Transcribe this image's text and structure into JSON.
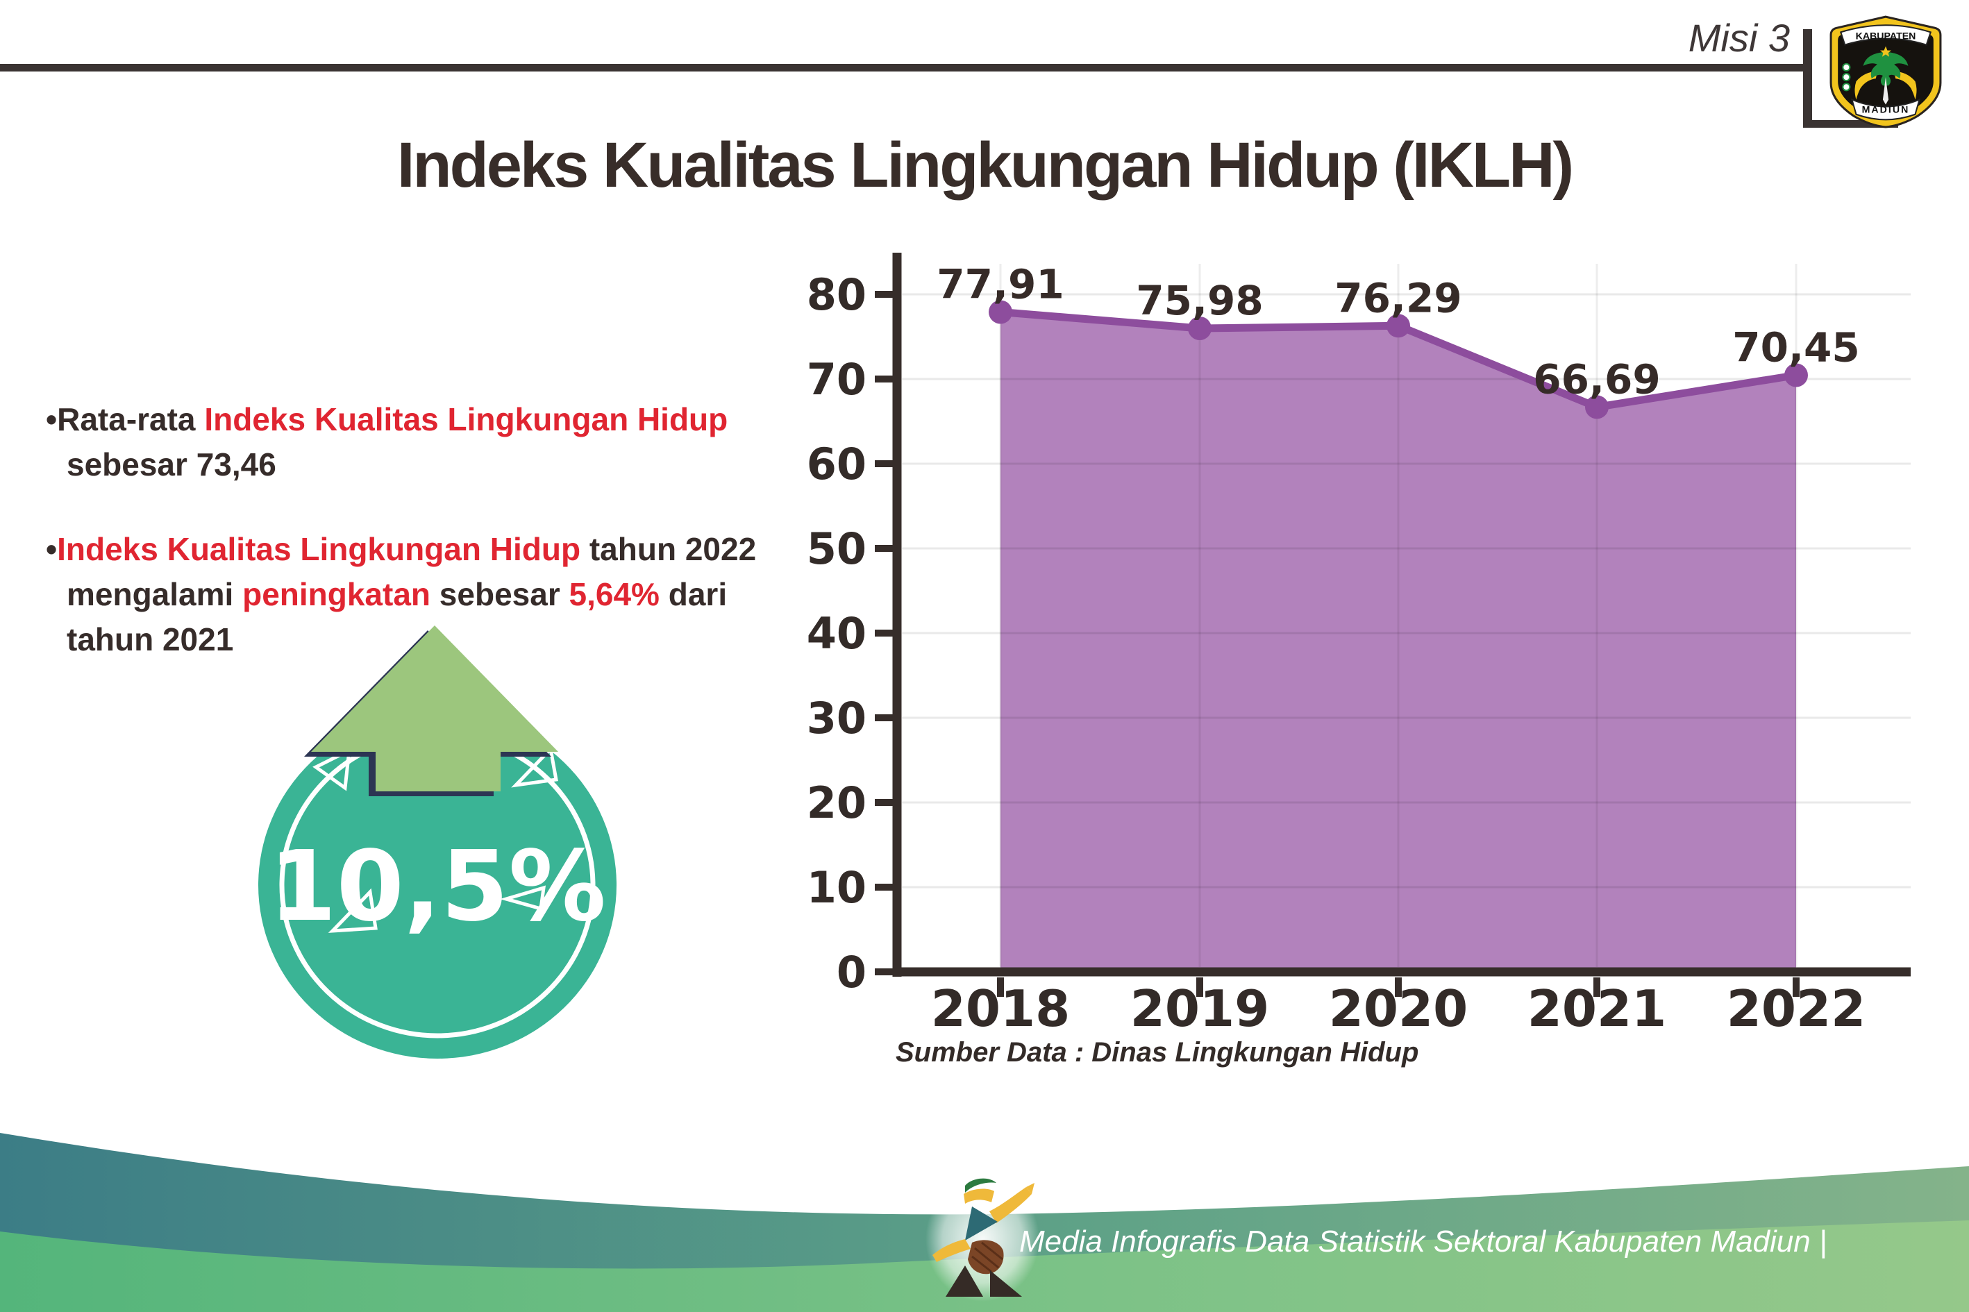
{
  "header": {
    "misi_label": "Misi 3",
    "logo": {
      "top_text": "KABUPATEN",
      "bottom_text": "MADIUN"
    }
  },
  "title": "Indeks Kualitas Lingkungan Hidup (IKLH)",
  "bullets": {
    "marker": "•",
    "items": [
      {
        "segments": [
          {
            "text": "Rata-rata ",
            "style": "dark"
          },
          {
            "text": "Indeks Kualitas Lingkungan Hidup",
            "style": "red"
          },
          {
            "text": " sebesar 73,46",
            "style": "dark"
          }
        ]
      },
      {
        "segments": [
          {
            "text": "Indeks Kualitas Lingkungan Hidup",
            "style": "red"
          },
          {
            "text": " tahun 2022 mengalami ",
            "style": "dark"
          },
          {
            "text": "peningkatan",
            "style": "red"
          },
          {
            "text": " sebesar ",
            "style": "dark"
          },
          {
            "text": "5,64%",
            "style": "red"
          },
          {
            "text": " dari tahun 2021",
            "style": "dark"
          }
        ]
      }
    ]
  },
  "badge": {
    "value": "10,5%"
  },
  "chart_data": {
    "type": "area",
    "categories": [
      "2018",
      "2019",
      "2020",
      "2021",
      "2022"
    ],
    "values": [
      77.91,
      75.98,
      76.29,
      66.69,
      70.45
    ],
    "value_labels": [
      "77,91",
      "75,98",
      "76,29",
      "66,69",
      "70,45"
    ],
    "title": "",
    "xlabel": "",
    "ylabel": "",
    "ylim": [
      0,
      86
    ],
    "yticks": [
      0,
      10,
      20,
      30,
      40,
      50,
      60,
      70,
      80
    ],
    "grid": true,
    "legend": "none",
    "area_color": "#b282bc",
    "line_color": "#8d4d9d",
    "source_note": "Sumber Data : Dinas Lingkungan Hidup"
  },
  "footer": {
    "credit": "Media Infografis Data Statistik Sektoral Kabupaten Madiun |"
  },
  "colors": {
    "ink": "#362c2a",
    "accent_red": "#e02531",
    "badge_teal": "#3ab495",
    "arrow_green": "#9cc67d",
    "arrow_outline_navy": "#2c3553",
    "purple_fill": "#b282bc",
    "purple_line": "#8d4d9d",
    "footer_teal": "#3c7d86",
    "footer_green": "#55b67c"
  }
}
